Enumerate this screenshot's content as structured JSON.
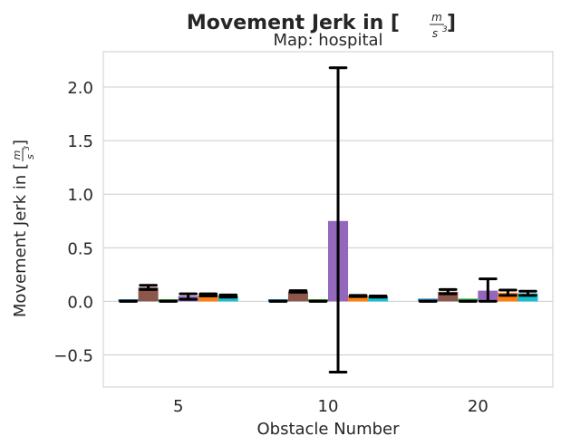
{
  "chart_data": {
    "type": "bar",
    "title_prefix": "Movement Jerk in [",
    "title_suffix": "]",
    "unit_numerator": "m",
    "unit_denominator": "s",
    "unit_exponent": "3",
    "subtitle": "Map: hospital",
    "xlabel": "Obstacle Number",
    "ylabel_prefix": "Movement Jerk in [",
    "ylabel_suffix": "]",
    "categories": [
      "5",
      "10",
      "20"
    ],
    "ylim": [
      -0.8,
      2.33
    ],
    "yticks": [
      -0.5,
      0.0,
      0.5,
      1.0,
      1.5,
      2.0
    ],
    "ytick_labels": [
      "−0.5",
      "0.0",
      "0.5",
      "1.0",
      "1.5",
      "2.0"
    ],
    "grid": true,
    "series": [
      {
        "color": "#1f77b4",
        "values": [
          0.02,
          0.02,
          0.025
        ],
        "err_low": [
          0.0,
          0.0,
          0.0
        ],
        "err_high": [
          0.0,
          0.0,
          0.0
        ]
      },
      {
        "color": "#8c564b",
        "values": [
          0.13,
          0.09,
          0.09
        ],
        "err_low": [
          0.11,
          0.085,
          0.07
        ],
        "err_high": [
          0.15,
          0.1,
          0.11
        ]
      },
      {
        "color": "#2ca02c",
        "values": [
          0.02,
          0.02,
          0.025
        ],
        "err_low": [
          0.0,
          0.0,
          0.0
        ],
        "err_high": [
          0.0,
          0.0,
          0.0
        ]
      },
      {
        "color": "#9467bd",
        "values": [
          0.05,
          0.75,
          0.1
        ],
        "err_low": [
          0.02,
          -0.66,
          0.0
        ],
        "err_high": [
          0.07,
          2.18,
          0.21
        ]
      },
      {
        "color": "#ff7f0e",
        "values": [
          0.06,
          0.05,
          0.08
        ],
        "err_low": [
          0.05,
          0.045,
          0.055
        ],
        "err_high": [
          0.07,
          0.055,
          0.105
        ]
      },
      {
        "color": "#17becf",
        "values": [
          0.05,
          0.045,
          0.075
        ],
        "err_low": [
          0.04,
          0.04,
          0.055
        ],
        "err_high": [
          0.06,
          0.05,
          0.095
        ]
      }
    ]
  }
}
